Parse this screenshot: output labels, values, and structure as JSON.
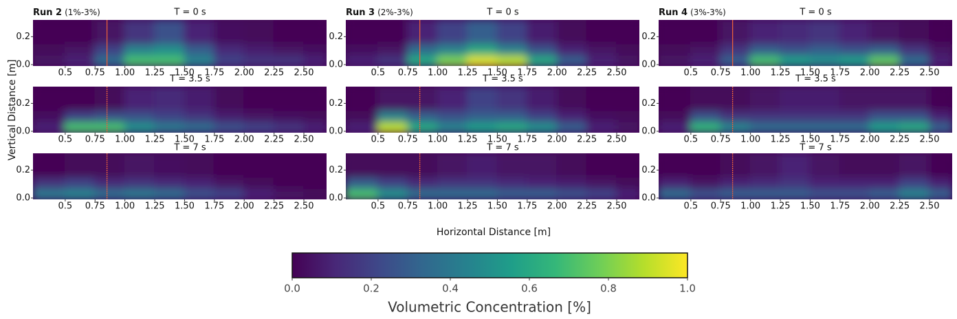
{
  "chart_data": {
    "type": "heatmap",
    "xlabel": "Horizontal Distance [m]",
    "ylabel": "Vertical Distance [m]",
    "xlim": [
      0.23,
      2.69
    ],
    "ylim": [
      -0.01,
      0.32
    ],
    "xticks": [
      0.5,
      0.75,
      {
        "value": 1,
        "label": "1.00"
      },
      1.25,
      {
        "value": 1.5,
        "label": "1.50"
      },
      1.75,
      {
        "value": 2,
        "label": "2.00"
      },
      2.25,
      {
        "value": 2.5,
        "label": "2.50"
      }
    ],
    "yticks": [
      {
        "value": 0,
        "label": "0.0"
      },
      0.2
    ],
    "xbins": [
      0.23,
      0.5,
      0.75,
      1.0,
      1.25,
      1.5,
      1.75,
      2.0,
      2.25,
      2.5,
      2.69
    ],
    "ybins": [
      -0.01,
      0.07,
      0.15,
      0.32
    ],
    "reference_x": 0.85,
    "reference_color": "#e8603c",
    "colormap": [
      "#440154",
      "#482878",
      "#3e4989",
      "#31688e",
      "#26828e",
      "#1f9e89",
      "#35b779",
      "#6ece58",
      "#b5de2b",
      "#fde725"
    ],
    "runs": [
      {
        "name": "Run 2",
        "detail": "(1%-3%)",
        "panels": [
          {
            "title": "T = 0 s",
            "values": [
              [
                0.05,
                0.1,
                0.35,
                0.7,
                0.7,
                0.45,
                0.2,
                0.15,
                0.15,
                0.1
              ],
              [
                0.02,
                0.05,
                0.2,
                0.45,
                0.5,
                0.3,
                0.12,
                0.08,
                0.05,
                0.03
              ],
              [
                0,
                0,
                0.05,
                0.15,
                0.25,
                0.1,
                0.03,
                0.02,
                0,
                0
              ]
            ]
          },
          {
            "title": "T = 3.5 s",
            "values": [
              [
                0.1,
                0.7,
                0.7,
                0.5,
                0.4,
                0.35,
                0.25,
                0.2,
                0.15,
                0.1
              ],
              [
                0.03,
                0.2,
                0.25,
                0.25,
                0.2,
                0.15,
                0.08,
                0.05,
                0.03,
                0.02
              ],
              [
                0,
                0,
                0.02,
                0.1,
                0.12,
                0.08,
                0.02,
                0,
                0,
                0
              ]
            ]
          },
          {
            "title": "T = 7 s",
            "values": [
              [
                0.4,
                0.45,
                0.35,
                0.4,
                0.35,
                0.25,
                0.2,
                0.1,
                0.05,
                0.02
              ],
              [
                0.15,
                0.2,
                0.12,
                0.15,
                0.12,
                0.1,
                0.05,
                0.02,
                0,
                0
              ],
              [
                0,
                0.02,
                0.02,
                0.05,
                0.03,
                0.02,
                0,
                0,
                0,
                0
              ]
            ]
          }
        ]
      },
      {
        "name": "Run 3",
        "detail": "(2%-3%)",
        "panels": [
          {
            "title": "T = 0 s",
            "values": [
              [
                0.1,
                0.15,
                0.6,
                0.8,
                0.95,
                0.9,
                0.6,
                0.3,
                0.1,
                0.05
              ],
              [
                0.03,
                0.05,
                0.35,
                0.45,
                0.6,
                0.45,
                0.25,
                0.1,
                0.05,
                0.02
              ],
              [
                0,
                0,
                0.1,
                0.2,
                0.3,
                0.2,
                0.08,
                0.02,
                0,
                0
              ]
            ]
          },
          {
            "title": "T = 3.5 s",
            "values": [
              [
                0.1,
                0.9,
                0.6,
                0.45,
                0.55,
                0.6,
                0.5,
                0.3,
                0.1,
                0.05
              ],
              [
                0.02,
                0.45,
                0.3,
                0.25,
                0.3,
                0.3,
                0.2,
                0.1,
                0.03,
                0.02
              ],
              [
                0,
                0.05,
                0.05,
                0.1,
                0.2,
                0.15,
                0.08,
                0.02,
                0,
                0
              ]
            ]
          },
          {
            "title": "T = 7 s",
            "values": [
              [
                0.7,
                0.5,
                0.35,
                0.35,
                0.35,
                0.3,
                0.3,
                0.25,
                0.2,
                0.1
              ],
              [
                0.3,
                0.2,
                0.12,
                0.15,
                0.15,
                0.12,
                0.1,
                0.08,
                0.05,
                0.02
              ],
              [
                0.02,
                0.02,
                0.02,
                0.05,
                0.08,
                0.05,
                0.05,
                0.02,
                0,
                0
              ]
            ]
          }
        ]
      },
      {
        "name": "Run 4",
        "detail": "(3%-3%)",
        "panels": [
          {
            "title": "T = 0 s",
            "values": [
              [
                0.05,
                0.1,
                0.3,
                0.7,
                0.55,
                0.5,
                0.55,
                0.75,
                0.35,
                0.1
              ],
              [
                0.02,
                0.05,
                0.15,
                0.3,
                0.25,
                0.3,
                0.25,
                0.3,
                0.15,
                0.05
              ],
              [
                0,
                0,
                0.05,
                0.1,
                0.12,
                0.15,
                0.1,
                0.05,
                0.02,
                0
              ]
            ]
          },
          {
            "title": "T = 3.5 s",
            "values": [
              [
                0.1,
                0.65,
                0.45,
                0.35,
                0.35,
                0.35,
                0.35,
                0.55,
                0.6,
                0.3
              ],
              [
                0.02,
                0.25,
                0.15,
                0.15,
                0.15,
                0.15,
                0.15,
                0.25,
                0.25,
                0.1
              ],
              [
                0,
                0.02,
                0.02,
                0.05,
                0.08,
                0.08,
                0.05,
                0.05,
                0.05,
                0
              ]
            ]
          },
          {
            "title": "T = 7 s",
            "values": [
              [
                0.35,
                0.25,
                0.3,
                0.3,
                0.3,
                0.25,
                0.25,
                0.3,
                0.45,
                0.3
              ],
              [
                0.1,
                0.05,
                0.1,
                0.12,
                0.15,
                0.1,
                0.1,
                0.1,
                0.2,
                0.1
              ],
              [
                0,
                0,
                0.02,
                0.05,
                0.1,
                0.05,
                0.02,
                0.02,
                0.05,
                0
              ]
            ]
          }
        ]
      }
    ],
    "colorbar": {
      "label": "Volumetric Concentration  [%]",
      "lim": [
        0,
        1
      ],
      "ticks": [
        {
          "value": 0,
          "label": "0.0"
        },
        0.2,
        0.4,
        0.6,
        0.8,
        {
          "value": 1,
          "label": "1.0"
        }
      ]
    }
  }
}
